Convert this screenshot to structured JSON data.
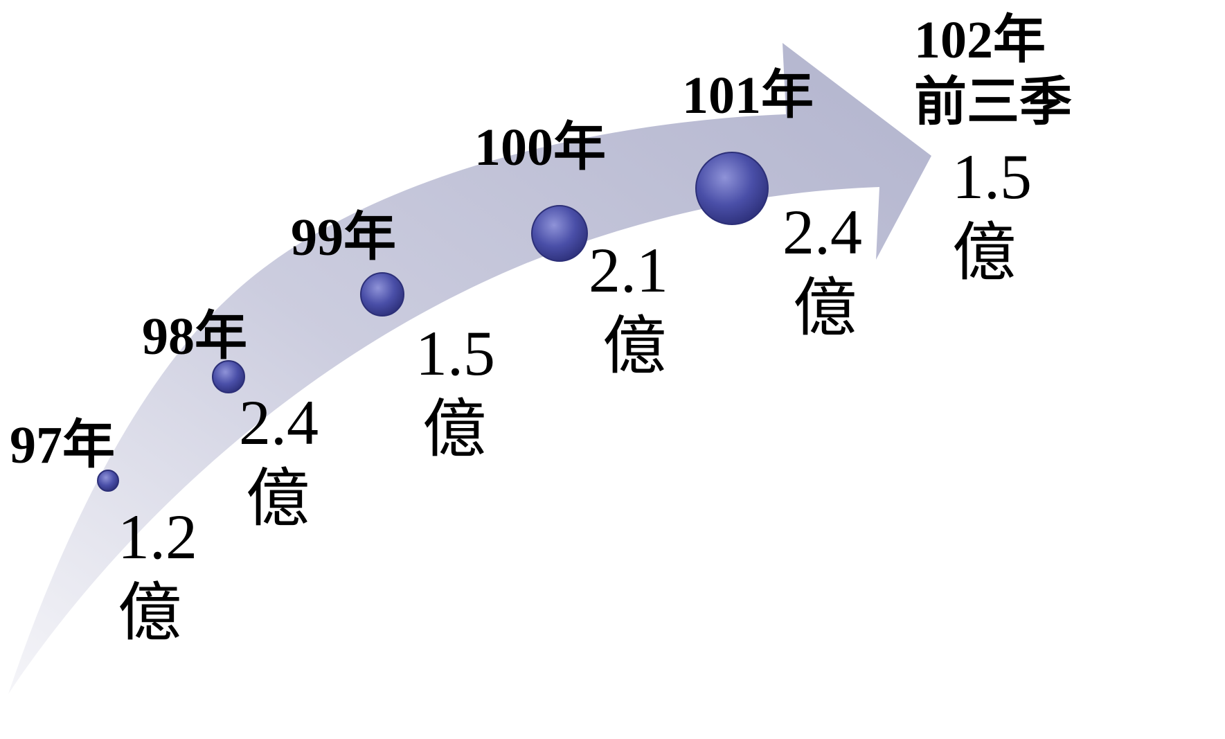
{
  "diagram": {
    "milestones": [
      {
        "year": "97年",
        "value": "1.2",
        "unit": "億"
      },
      {
        "year": "98年",
        "value": "2.4",
        "unit": "億"
      },
      {
        "year": "99年",
        "value": "1.5",
        "unit": "億"
      },
      {
        "year": "100年",
        "value": "2.1",
        "unit": "億"
      },
      {
        "year": "101年",
        "value": "2.4",
        "unit": "億"
      },
      {
        "year_line1": "102年",
        "year_line2": "前三季",
        "value": "1.5",
        "unit": "億"
      }
    ],
    "colors": {
      "arrow_light": "#e8e8f0",
      "arrow_dark": "#aeb0cb",
      "dot_fill": "#4a4fa8",
      "dot_highlight": "#8f93d8",
      "text": "#000000"
    }
  }
}
